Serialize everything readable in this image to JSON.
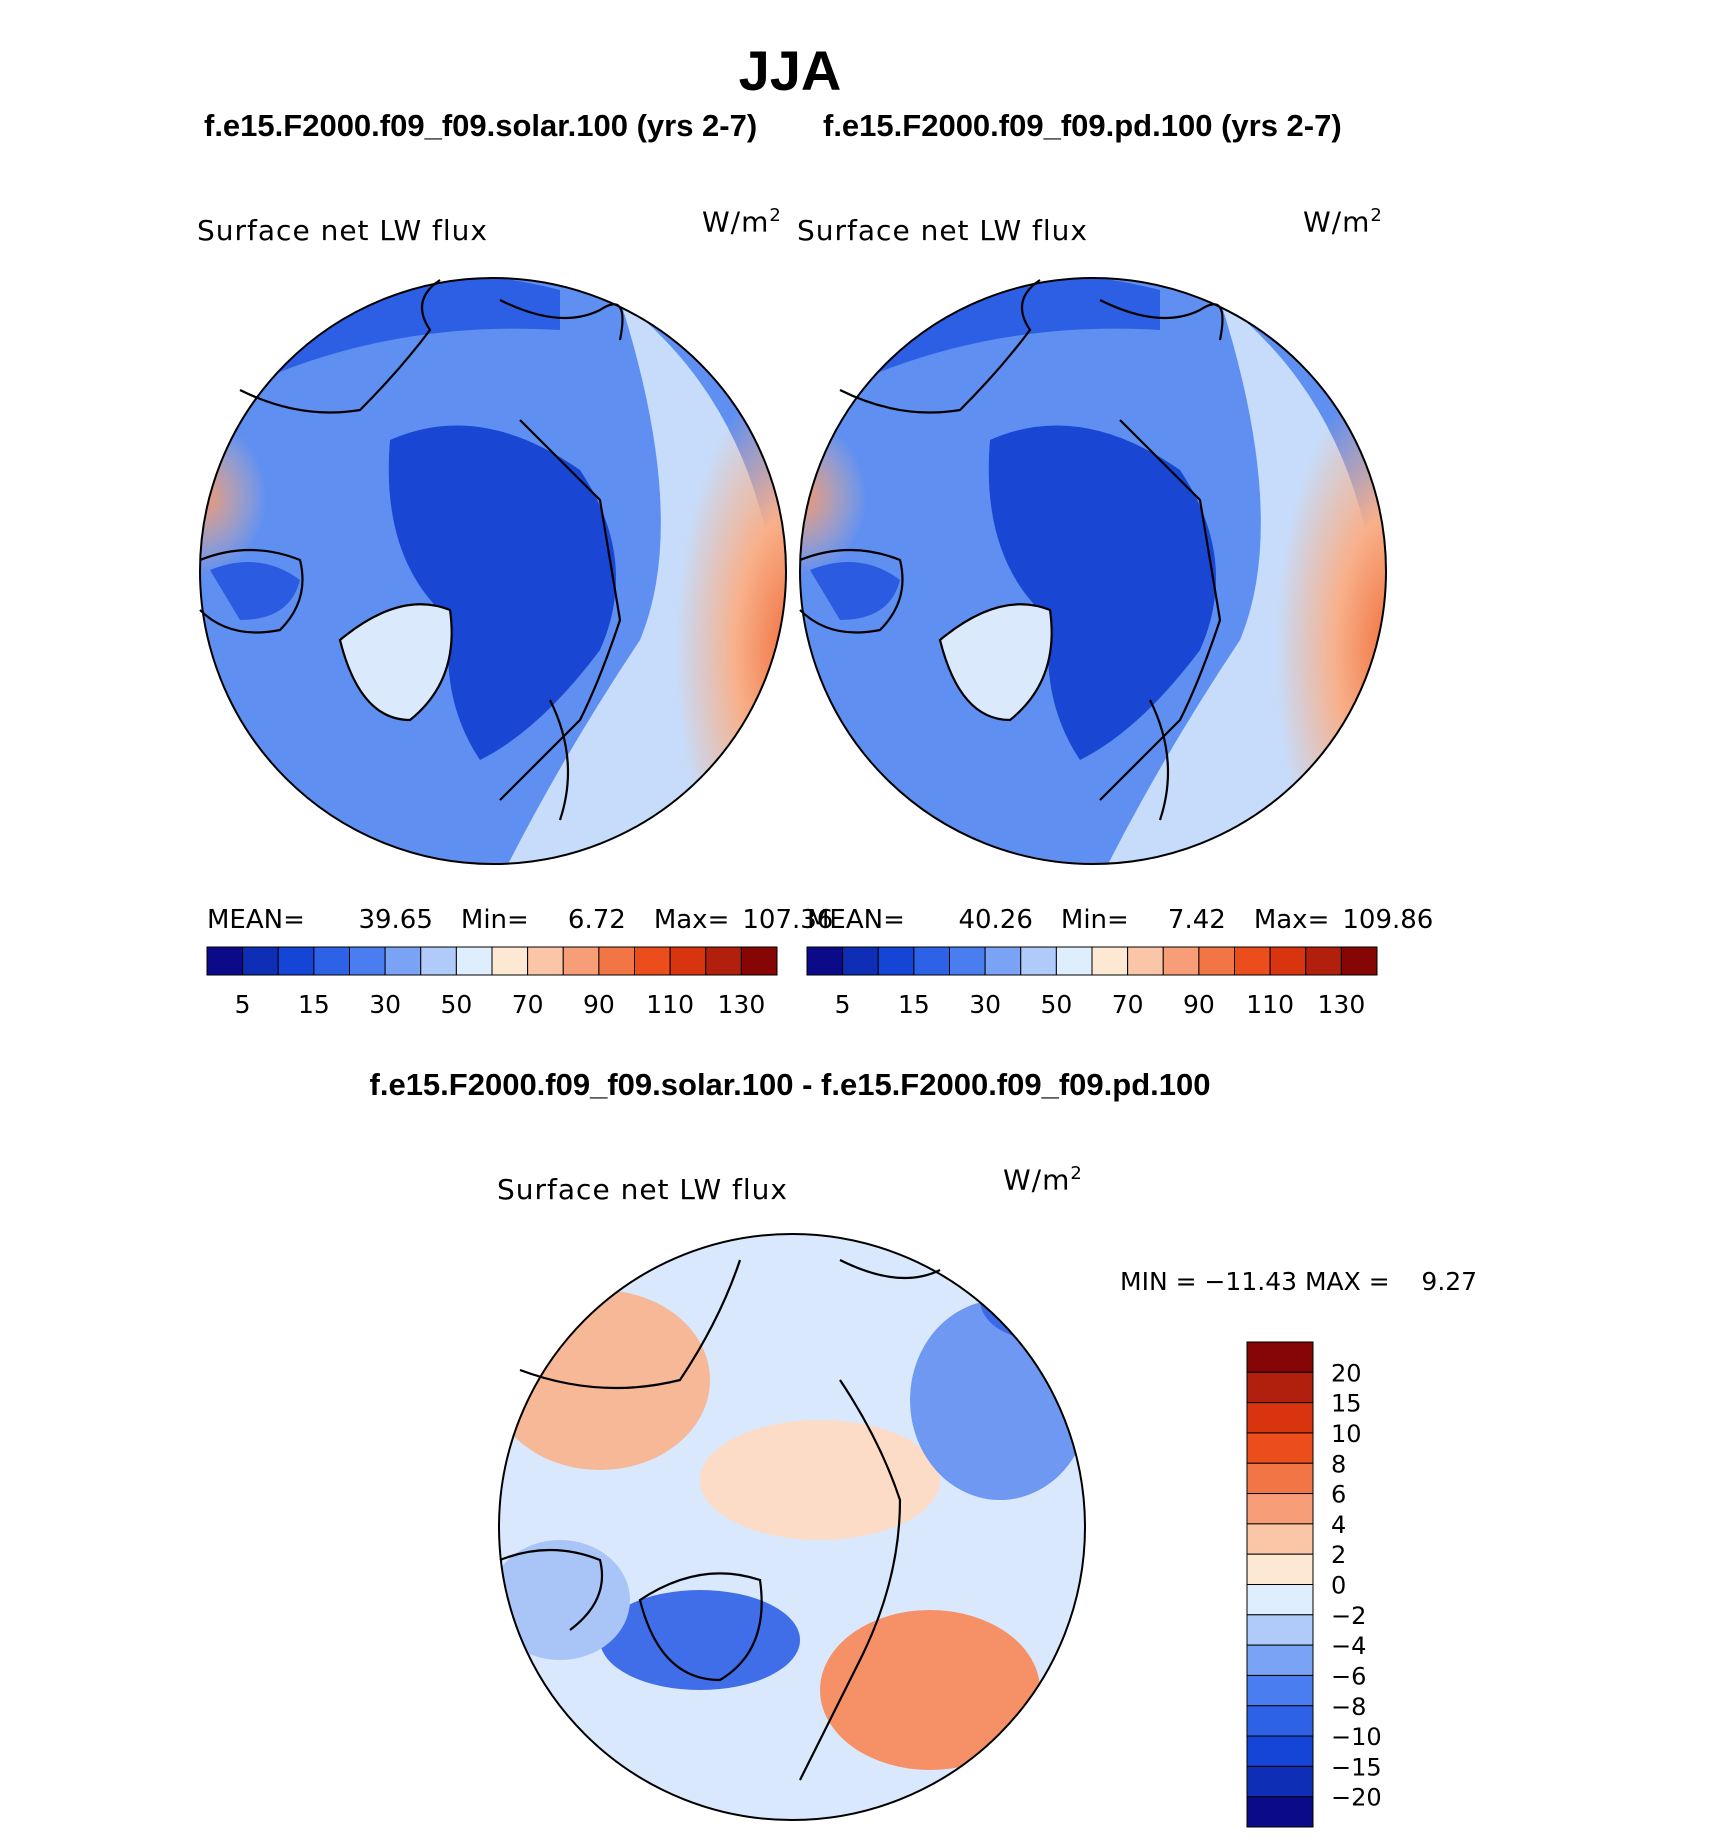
{
  "title": "JJA",
  "top_left": {
    "run_title": "f.e15.F2000.f09_f09.solar.100 (yrs 2-7)",
    "var_label": "Surface net LW flux",
    "units_label": "W/m",
    "units_sup": "2",
    "stats": {
      "mean_label": "MEAN=",
      "mean": "39.65",
      "min_label": "Min=",
      "min": "6.72",
      "max_label": "Max=",
      "max": "107.36"
    }
  },
  "top_right": {
    "run_title": "f.e15.F2000.f09_f09.pd.100 (yrs 2-7)",
    "var_label": "Surface net LW flux",
    "units_label": "W/m",
    "units_sup": "2",
    "stats": {
      "mean_label": "MEAN=",
      "mean": "40.26",
      "min_label": "Min=",
      "min": "7.42",
      "max_label": "Max=",
      "max": "109.86"
    }
  },
  "diff": {
    "title": "f.e15.F2000.f09_f09.solar.100 - f.e15.F2000.f09_f09.pd.100",
    "var_label": "Surface net LW flux",
    "units_label": "W/m",
    "units_sup": "2",
    "minmax_text": "MIN = −11.43 MAX =    9.27"
  },
  "colors": {
    "abs_scale": [
      "#0b0b8a",
      "#0e2fb5",
      "#1545d6",
      "#2e62e6",
      "#4a7ef0",
      "#7ba3f5",
      "#b0cbf9",
      "#dfeefc",
      "#fde8d4",
      "#fbc6a8",
      "#f79e78",
      "#f27545",
      "#eb4d1c",
      "#d93410",
      "#b1200c",
      "#860505"
    ],
    "diff_scale": [
      "#0b0b8a",
      "#0e2fb5",
      "#1545d6",
      "#2e62e6",
      "#4a7ef0",
      "#7ba3f5",
      "#b0cbf9",
      "#dfeefc",
      "#fde8d4",
      "#fbc6a8",
      "#f79e78",
      "#f27545",
      "#eb4d1c",
      "#d93410",
      "#b1200c",
      "#860505"
    ],
    "polar_blue": "#1d4fd8",
    "mid_blue": "#5e8ff0",
    "light_blue": "#c3dafa",
    "warm": "#f6a07c"
  },
  "chart_data": [
    {
      "type": "heatmap",
      "title": "f.e15.F2000.f09_f09.solar.100 (yrs 2-7)",
      "variable": "Surface net LW flux",
      "units": "W/m2",
      "projection": "north polar stereographic",
      "colorbar_ticks": [
        "5",
        "15",
        "30",
        "50",
        "70",
        "90",
        "110",
        "130"
      ],
      "colorbar_levels": [
        5,
        10,
        15,
        20,
        30,
        40,
        50,
        60,
        70,
        80,
        90,
        100,
        110,
        120,
        130
      ],
      "mean": 39.65,
      "min": 6.72,
      "max": 107.36
    },
    {
      "type": "heatmap",
      "title": "f.e15.F2000.f09_f09.pd.100 (yrs 2-7)",
      "variable": "Surface net LW flux",
      "units": "W/m2",
      "projection": "north polar stereographic",
      "colorbar_ticks": [
        "5",
        "15",
        "30",
        "50",
        "70",
        "90",
        "110",
        "130"
      ],
      "colorbar_levels": [
        5,
        10,
        15,
        20,
        30,
        40,
        50,
        60,
        70,
        80,
        90,
        100,
        110,
        120,
        130
      ],
      "mean": 40.26,
      "min": 7.42,
      "max": 109.86
    },
    {
      "type": "heatmap",
      "title": "f.e15.F2000.f09_f09.solar.100 - f.e15.F2000.f09_f09.pd.100",
      "variable": "Surface net LW flux",
      "units": "W/m2",
      "projection": "north polar stereographic",
      "colorbar_ticks": [
        "20",
        "15",
        "10",
        "8",
        "6",
        "4",
        "2",
        "0",
        "−2",
        "−4",
        "−6",
        "−8",
        "−10",
        "−15",
        "−20"
      ],
      "colorbar_levels": [
        -20,
        -15,
        -10,
        -8,
        -6,
        -4,
        -2,
        0,
        2,
        4,
        6,
        8,
        10,
        15,
        20
      ],
      "min": -11.43,
      "max": 9.27
    }
  ]
}
